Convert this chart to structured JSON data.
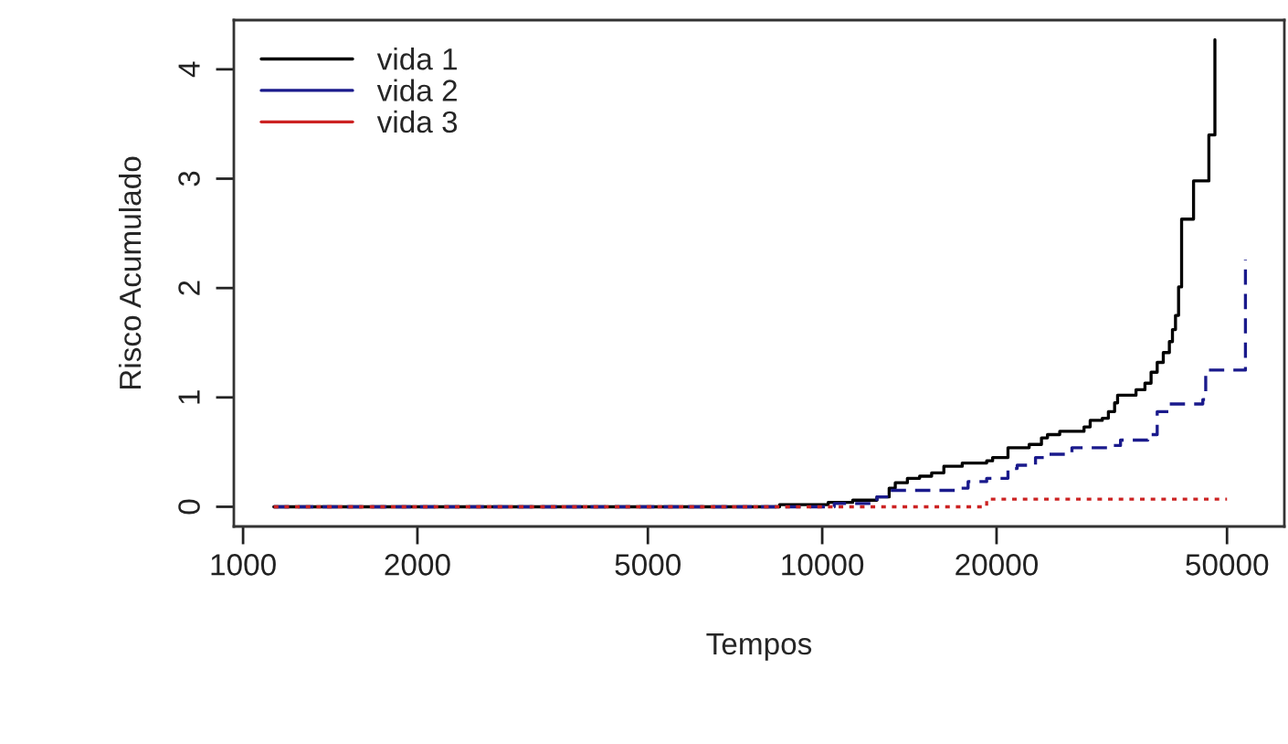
{
  "chart_data": {
    "type": "step",
    "xlabel": "Tempos",
    "ylabel": "Risco Acumulado",
    "log": "x",
    "xlim": [
      964,
      62800
    ],
    "ylim": [
      -0.18,
      4.45
    ],
    "xticks": [
      1000,
      2000,
      5000,
      10000,
      20000,
      50000
    ],
    "yticks": [
      0,
      1,
      2,
      3,
      4
    ],
    "grid": false,
    "legend": "top left",
    "series": [
      {
        "name": "vida 1",
        "color": "#000000",
        "line_style": "solid",
        "x": [
          1130,
          8440,
          10240,
          11290,
          12430,
          13050,
          13370,
          14030,
          14730,
          15450,
          16220,
          17450,
          19230,
          19690,
          20930,
          22770,
          23910,
          24490,
          25710,
          28320,
          29020,
          30450,
          31200,
          31980,
          32360,
          34820,
          36080,
          36970,
          37880,
          38810,
          39760,
          40250,
          40740,
          41240,
          41740,
          43770,
          46520,
          47650
        ],
        "values": [
          0,
          0.02,
          0.04,
          0.06,
          0.09,
          0.17,
          0.22,
          0.26,
          0.28,
          0.31,
          0.37,
          0.4,
          0.42,
          0.45,
          0.54,
          0.57,
          0.63,
          0.66,
          0.69,
          0.73,
          0.79,
          0.81,
          0.87,
          0.95,
          1.02,
          1.07,
          1.13,
          1.23,
          1.32,
          1.41,
          1.51,
          1.62,
          1.75,
          2.01,
          2.63,
          2.98,
          3.4,
          4.27
        ]
      },
      {
        "name": "vida 2",
        "color": "#1a1a8c",
        "line_style": "dashed",
        "x": [
          1130,
          10490,
          12430,
          13050,
          17020,
          17860,
          19230,
          20930,
          21710,
          23350,
          24490,
          26990,
          31200,
          32740,
          36500,
          37880,
          39760,
          45410,
          45940,
          53800
        ],
        "values": [
          0,
          0.03,
          0.09,
          0.15,
          0.17,
          0.23,
          0.26,
          0.35,
          0.38,
          0.45,
          0.48,
          0.54,
          0.56,
          0.61,
          0.66,
          0.87,
          0.94,
          0.98,
          1.25,
          2.26
        ]
      },
      {
        "name": "vida 3",
        "color": "#cc2222",
        "line_style": "dotted",
        "x": [
          1130,
          19230,
          50000
        ],
        "values": [
          0,
          0.07,
          0.07
        ]
      }
    ]
  }
}
